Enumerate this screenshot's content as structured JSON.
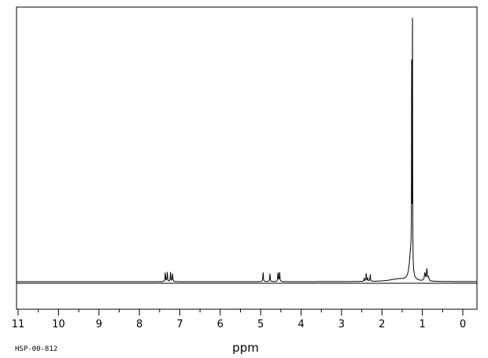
{
  "chart_data": {
    "type": "line",
    "xlabel": "ppm",
    "x_reversed": true,
    "xlim": [
      11,
      0
    ],
    "ylim": [
      0,
      100
    ],
    "grid": false,
    "ticks": {
      "major": [
        11,
        10,
        9,
        8,
        7,
        6,
        5,
        4,
        3,
        2,
        1,
        0
      ],
      "labels": [
        "11",
        "10",
        "9",
        "8",
        "7",
        "6",
        "5",
        "4",
        "3",
        "2",
        "1",
        "0"
      ]
    },
    "peaks": [
      {
        "ppm": 7.36,
        "height": 3.5,
        "width": 0.008
      },
      {
        "ppm": 7.31,
        "height": 3.5,
        "width": 0.008
      },
      {
        "ppm": 7.23,
        "height": 3.5,
        "width": 0.008
      },
      {
        "ppm": 7.18,
        "height": 3.0,
        "width": 0.008
      },
      {
        "ppm": 4.94,
        "height": 3.5,
        "width": 0.008
      },
      {
        "ppm": 4.77,
        "height": 3.0,
        "width": 0.008
      },
      {
        "ppm": 4.57,
        "height": 3.5,
        "width": 0.008
      },
      {
        "ppm": 4.53,
        "height": 3.5,
        "width": 0.008
      },
      {
        "ppm": 2.44,
        "height": 1.2,
        "width": 0.008
      },
      {
        "ppm": 2.39,
        "height": 3.0,
        "width": 0.008
      },
      {
        "ppm": 2.35,
        "height": 1.2,
        "width": 0.008
      },
      {
        "ppm": 2.29,
        "height": 2.5,
        "width": 0.008
      },
      {
        "ppm": 1.6,
        "height": 1.0,
        "width": 0.25
      },
      {
        "ppm": 1.29,
        "height": 11.0,
        "width": 0.04
      },
      {
        "ppm": 1.265,
        "height": 78.0,
        "width": 0.004
      },
      {
        "ppm": 1.245,
        "height": 99.0,
        "width": 0.004
      },
      {
        "ppm": 0.94,
        "height": 3.0,
        "width": 0.015
      },
      {
        "ppm": 0.89,
        "height": 4.5,
        "width": 0.012
      },
      {
        "ppm": 0.85,
        "height": 1.5,
        "width": 0.015
      }
    ],
    "annotation": "HSP-00-812"
  }
}
